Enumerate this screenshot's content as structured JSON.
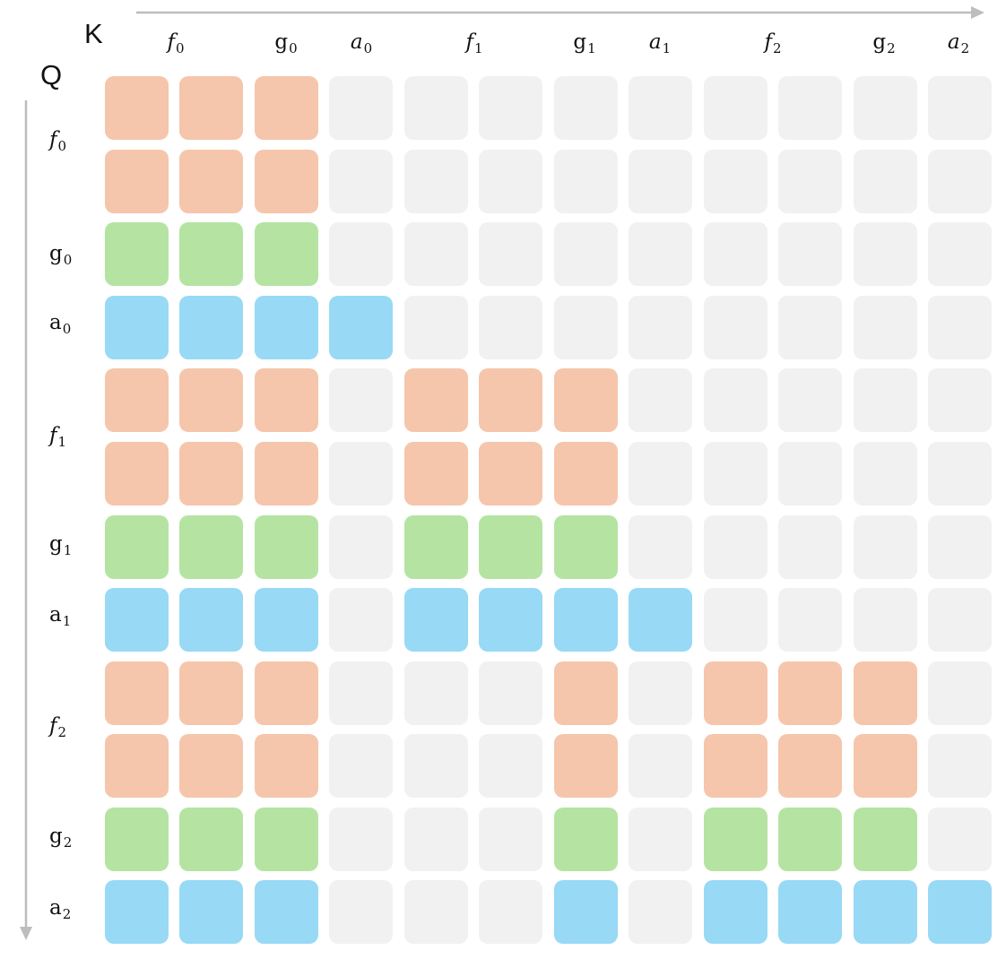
{
  "axis_titles": {
    "k": "K",
    "q": "Q"
  },
  "tokens": [
    {
      "base": "f",
      "sub": "0",
      "italic": true
    },
    {
      "base": "g",
      "sub": "0",
      "italic": false
    },
    {
      "base": "a",
      "sub": "0",
      "italic": true
    },
    {
      "base": "f",
      "sub": "1",
      "italic": true
    },
    {
      "base": "g",
      "sub": "1",
      "italic": false
    },
    {
      "base": "a",
      "sub": "1",
      "italic": true
    },
    {
      "base": "f",
      "sub": "2",
      "italic": true
    },
    {
      "base": "g",
      "sub": "2",
      "italic": false
    },
    {
      "base": "a",
      "sub": "2",
      "italic": true
    }
  ],
  "row_tokens": [
    {
      "base": "f",
      "sub": "0",
      "italic": true
    },
    {
      "base": "g",
      "sub": "0",
      "italic": false
    },
    {
      "base": "a",
      "sub": "0",
      "italic": false
    },
    {
      "base": "f",
      "sub": "1",
      "italic": true
    },
    {
      "base": "g",
      "sub": "1",
      "italic": false
    },
    {
      "base": "a",
      "sub": "1",
      "italic": false
    },
    {
      "base": "f",
      "sub": "2",
      "italic": true
    },
    {
      "base": "g",
      "sub": "2",
      "italic": false
    },
    {
      "base": "a",
      "sub": "2",
      "italic": false
    }
  ],
  "colors": {
    "f": "#f5c6ab",
    "g": "#b5e4a2",
    "a": "#98d9f5",
    "0": "#f1f1f1",
    "axis": "#bdbdbd"
  },
  "mask": [
    "fff000000000",
    "fff000000000",
    "ggg000000000",
    "aaaa00000000",
    "fff0fff00000",
    "fff0fff00000",
    "ggg0ggg00000",
    "aaa0aaaa0000",
    "fff000f0fff0",
    "fff000f0fff0",
    "ggg000g0ggg0",
    "aaa000a0aaaa"
  ]
}
